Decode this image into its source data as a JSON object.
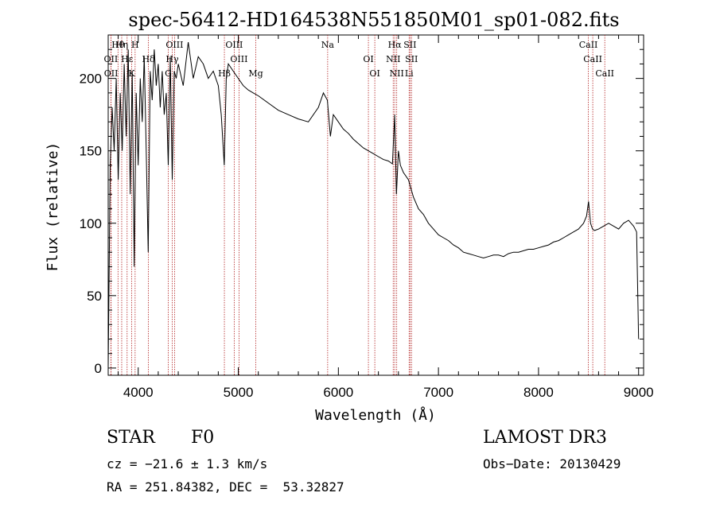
{
  "chart_data": {
    "type": "line",
    "title": "spec-56412-HD164538N551850M01_sp01-082.fits",
    "xlabel": "Wavelength (Å)",
    "ylabel": "Flux (relative)",
    "xlim": [
      3700,
      9050
    ],
    "ylim": [
      -5,
      230
    ],
    "x_ticks": [
      4000,
      5000,
      6000,
      7000,
      8000,
      9000
    ],
    "y_ticks": [
      0,
      50,
      100,
      150,
      200
    ],
    "grid": false,
    "series": [
      {
        "name": "Flux",
        "x": [
          3700,
          3720,
          3740,
          3760,
          3780,
          3800,
          3820,
          3840,
          3860,
          3880,
          3900,
          3920,
          3940,
          3960,
          3980,
          4000,
          4020,
          4040,
          4060,
          4080,
          4100,
          4120,
          4140,
          4160,
          4180,
          4200,
          4220,
          4240,
          4260,
          4280,
          4300,
          4320,
          4340,
          4360,
          4380,
          4400,
          4450,
          4500,
          4550,
          4600,
          4650,
          4700,
          4750,
          4800,
          4830,
          4860,
          4880,
          4900,
          4950,
          5000,
          5050,
          5100,
          5150,
          5200,
          5300,
          5400,
          5500,
          5600,
          5700,
          5800,
          5850,
          5890,
          5920,
          5950,
          6000,
          6050,
          6100,
          6150,
          6200,
          6250,
          6300,
          6350,
          6400,
          6450,
          6500,
          6540,
          6563,
          6580,
          6600,
          6620,
          6650,
          6700,
          6750,
          6800,
          6850,
          6900,
          6950,
          7000,
          7050,
          7100,
          7150,
          7200,
          7250,
          7300,
          7350,
          7400,
          7450,
          7500,
          7550,
          7600,
          7650,
          7700,
          7750,
          7800,
          7850,
          7900,
          7950,
          8000,
          8050,
          8100,
          8150,
          8200,
          8250,
          8300,
          8350,
          8400,
          8450,
          8480,
          8500,
          8520,
          8540,
          8560,
          8600,
          8650,
          8700,
          8750,
          8800,
          8850,
          8900,
          8950,
          8980,
          9000
        ],
        "values": [
          0,
          140,
          180,
          150,
          200,
          130,
          190,
          150,
          210,
          160,
          220,
          120,
          205,
          70,
          190,
          140,
          200,
          170,
          215,
          150,
          80,
          205,
          185,
          220,
          195,
          210,
          180,
          205,
          175,
          190,
          140,
          215,
          130,
          205,
          200,
          210,
          195,
          225,
          200,
          215,
          210,
          200,
          205,
          195,
          175,
          140,
          200,
          210,
          205,
          200,
          195,
          192,
          190,
          188,
          183,
          178,
          175,
          172,
          170,
          180,
          190,
          185,
          160,
          175,
          170,
          165,
          162,
          158,
          155,
          152,
          150,
          148,
          146,
          144,
          143,
          141,
          175,
          120,
          150,
          140,
          135,
          130,
          118,
          110,
          106,
          100,
          96,
          92,
          90,
          88,
          85,
          83,
          80,
          79,
          78,
          77,
          76,
          77,
          78,
          78,
          77,
          79,
          80,
          80,
          81,
          82,
          82,
          83,
          84,
          85,
          87,
          88,
          90,
          92,
          94,
          96,
          100,
          105,
          115,
          100,
          96,
          95,
          96,
          98,
          100,
          98,
          96,
          100,
          102,
          98,
          94,
          20
        ]
      }
    ],
    "line_markers": [
      {
        "label": "Hθ",
        "wavelength": 3798
      },
      {
        "label": "OII",
        "wavelength": 3727
      },
      {
        "label": "OII",
        "wavelength": 3729
      },
      {
        "label": "Hη",
        "wavelength": 3835
      },
      {
        "label": "Hε",
        "wavelength": 3889
      },
      {
        "label": "K",
        "wavelength": 3934
      },
      {
        "label": "H",
        "wavelength": 3969
      },
      {
        "label": "Hδ",
        "wavelength": 4102
      },
      {
        "label": "G",
        "wavelength": 4300
      },
      {
        "label": "OIII",
        "wavelength": 4363
      },
      {
        "label": "Hγ",
        "wavelength": 4340
      },
      {
        "label": "Hβ",
        "wavelength": 4861
      },
      {
        "label": "OIII",
        "wavelength": 4959
      },
      {
        "label": "OIII",
        "wavelength": 5007
      },
      {
        "label": "Mg",
        "wavelength": 5175
      },
      {
        "label": "Na",
        "wavelength": 5893
      },
      {
        "label": "OI",
        "wavelength": 6300
      },
      {
        "label": "OI",
        "wavelength": 6364
      },
      {
        "label": "Hα",
        "wavelength": 6563
      },
      {
        "label": "NII",
        "wavelength": 6548
      },
      {
        "label": "NII",
        "wavelength": 6583
      },
      {
        "label": "SII",
        "wavelength": 6716
      },
      {
        "label": "SII",
        "wavelength": 6731
      },
      {
        "label": "Li",
        "wavelength": 6707
      },
      {
        "label": "CaII",
        "wavelength": 8498
      },
      {
        "label": "CaII",
        "wavelength": 8542
      },
      {
        "label": "CaII",
        "wavelength": 8662
      }
    ]
  },
  "footer": {
    "object_class": "STAR",
    "subclass": "F0",
    "survey": "LAMOST DR3",
    "cz": "cz = −21.6 ± 1.3 km/s",
    "obs_date": "Obs−Date: 20130429",
    "coords": "RA = 251.84382, DEC =  53.32827"
  }
}
